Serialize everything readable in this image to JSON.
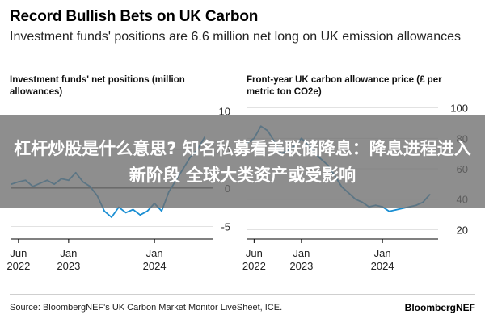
{
  "header": {
    "title": "Record Bullish Bets on UK Carbon",
    "subtitle": "Investment funds' positions are 6.6 million net long on UK emission allowances"
  },
  "banner": {
    "text": "杠杆炒股是什么意思? 知名私募看美联储降息：降息进程进入新阶段 全球大类资产或受影响"
  },
  "footer": {
    "source": "Source: BloombergNEF's UK Carbon Market Monitor LiveSheet, ICE.",
    "brand": "BloombergNEF"
  },
  "colors": {
    "line": "#1b8fd3",
    "grid": "#d9d9d9",
    "zero_line": "#000000",
    "banner": "#6e6e6e"
  },
  "chart_data": [
    {
      "type": "line",
      "title": "Investment funds' net positions (million allowances)",
      "x_ticks": [
        {
          "date": "2022-06",
          "line1": "Jun",
          "line2": "2022"
        },
        {
          "date": "2023-01",
          "line1": "Jan",
          "line2": "2023"
        },
        {
          "date": "2024-01",
          "line1": "Jan",
          "line2": "2024"
        }
      ],
      "xlim": [
        "2022-05",
        "2024-09"
      ],
      "y_ticks": [
        {
          "value": 10,
          "label": "10"
        },
        {
          "value": 5,
          "label": "5"
        },
        {
          "value": 0,
          "label": "0"
        },
        {
          "value": -5,
          "label": "-5"
        }
      ],
      "ylim": [
        -6,
        11
      ],
      "zero_line": 0,
      "series": [
        {
          "x": [
            "2022-05",
            "2022-06",
            "2022-07",
            "2022-08",
            "2022-09",
            "2022-10",
            "2022-11",
            "2022-12",
            "2023-01",
            "2023-02",
            "2023-03",
            "2023-04",
            "2023-05",
            "2023-06",
            "2023-07",
            "2023-08",
            "2023-09",
            "2023-10",
            "2023-11",
            "2023-12",
            "2024-01",
            "2024-02",
            "2024-03",
            "2024-04",
            "2024-05",
            "2024-06",
            "2024-07",
            "2024-08"
          ],
          "y": [
            0.5,
            0.8,
            1.0,
            0.2,
            0.6,
            1.0,
            0.5,
            1.2,
            1.0,
            2.0,
            0.8,
            0.2,
            -1.0,
            -3.0,
            -3.8,
            -2.5,
            -3.2,
            -2.8,
            -3.5,
            -3.0,
            -2.0,
            -3.0,
            -0.5,
            1.0,
            2.5,
            4.0,
            5.0,
            6.6
          ]
        }
      ]
    },
    {
      "type": "line",
      "title": "Front-year UK carbon allowance price (£ per metric ton CO2e)",
      "x_ticks": [
        {
          "date": "2022-06",
          "line1": "Jun",
          "line2": "2022"
        },
        {
          "date": "2023-01",
          "line1": "Jan",
          "line2": "2023"
        },
        {
          "date": "2024-01",
          "line1": "Jan",
          "line2": "2024"
        }
      ],
      "xlim": [
        "2022-05",
        "2024-09"
      ],
      "y_ticks": [
        {
          "value": 100,
          "label": "100"
        },
        {
          "value": 80,
          "label": "80"
        },
        {
          "value": 60,
          "label": "60"
        },
        {
          "value": 40,
          "label": "40"
        },
        {
          "value": 20,
          "label": "20"
        }
      ],
      "ylim": [
        17,
        103
      ],
      "series": [
        {
          "x": [
            "2022-05",
            "2022-06",
            "2022-07",
            "2022-08",
            "2022-09",
            "2022-10",
            "2022-11",
            "2022-12",
            "2023-01",
            "2023-02",
            "2023-03",
            "2023-04",
            "2023-05",
            "2023-06",
            "2023-07",
            "2023-08",
            "2023-09",
            "2023-10",
            "2023-11",
            "2023-12",
            "2024-01",
            "2024-02",
            "2024-03",
            "2024-04",
            "2024-05",
            "2024-06",
            "2024-07",
            "2024-08"
          ],
          "y": [
            77,
            80,
            88,
            85,
            78,
            70,
            72,
            75,
            80,
            76,
            70,
            66,
            62,
            55,
            48,
            44,
            40,
            38,
            35,
            36,
            35,
            32,
            33,
            34,
            35,
            36,
            38,
            43
          ]
        }
      ]
    }
  ]
}
